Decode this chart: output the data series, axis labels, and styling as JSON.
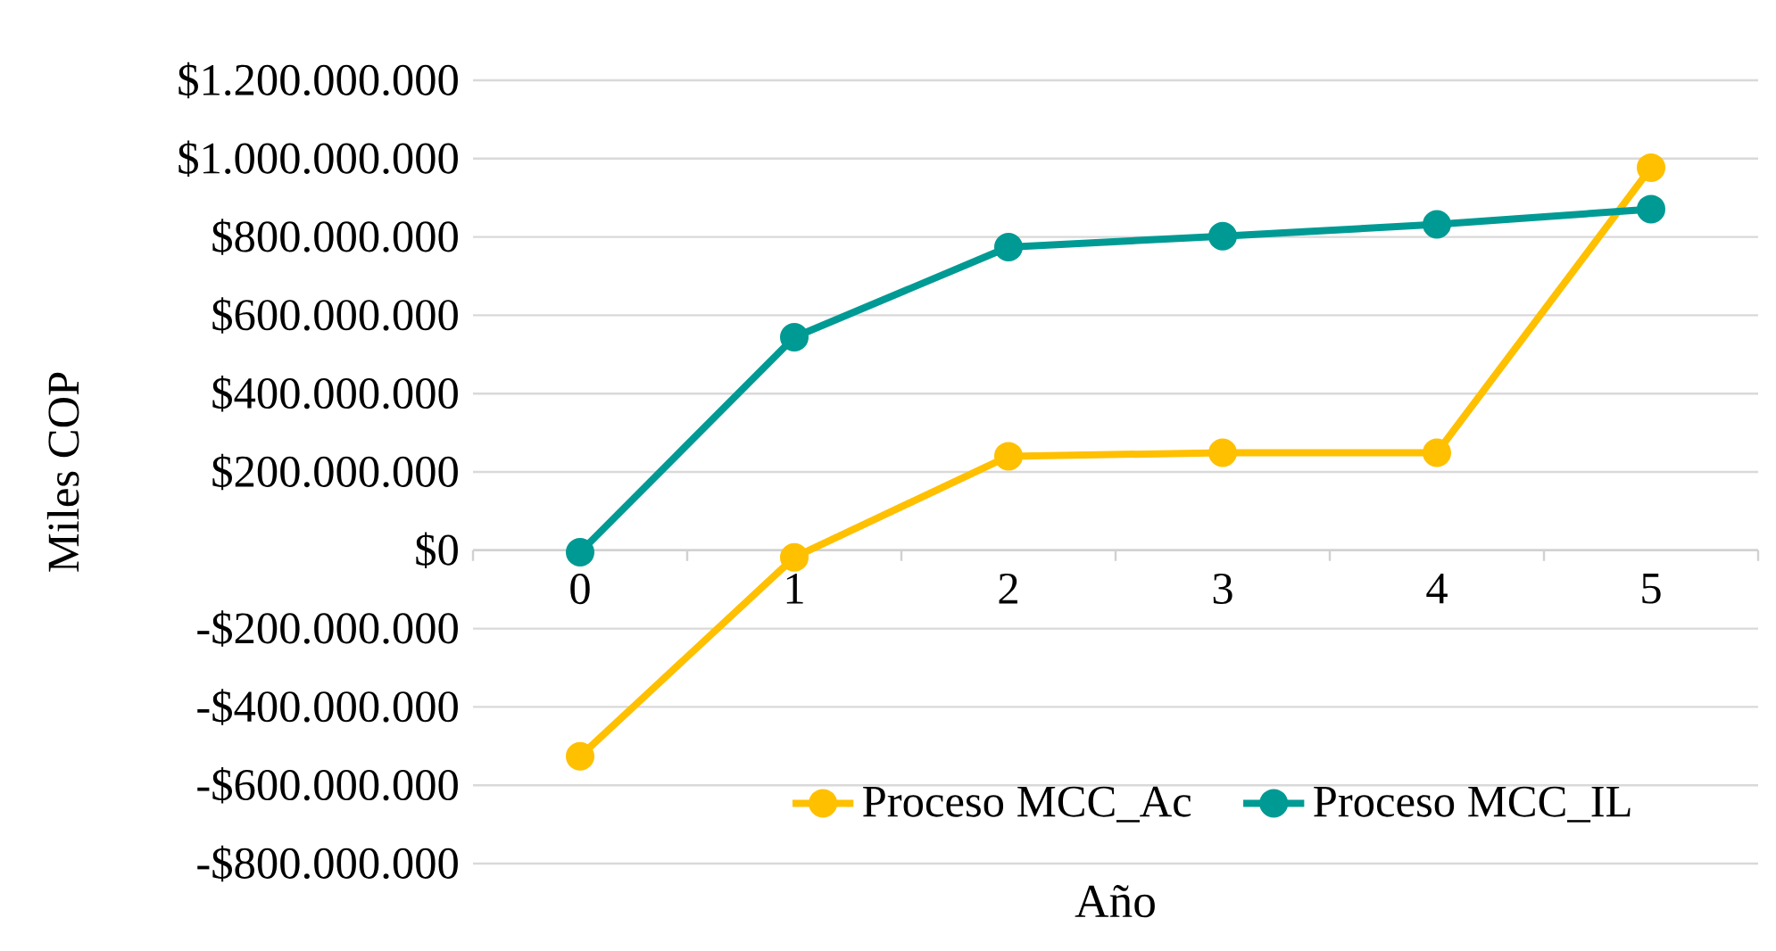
{
  "chart_data": {
    "type": "line",
    "xlabel": "Año",
    "ylabel": "Miles COP",
    "categories": [
      "0",
      "1",
      "2",
      "3",
      "4",
      "5"
    ],
    "series": [
      {
        "name": "Proceso MCC_Ac",
        "color": "#ffc000",
        "values": [
          -526000000,
          -18000000,
          240000000,
          249000000,
          249000000,
          977000000
        ]
      },
      {
        "name": "Proceso MCC_IL",
        "color": "#009a94",
        "values": [
          -5000000,
          544000000,
          774000000,
          802000000,
          832000000,
          871000000
        ]
      }
    ],
    "ylim": [
      -800000000,
      1200000000
    ],
    "yticks": [
      {
        "value": -800000000,
        "label": "-$800.000.000"
      },
      {
        "value": -600000000,
        "label": "-$600.000.000"
      },
      {
        "value": -400000000,
        "label": "-$400.000.000"
      },
      {
        "value": -200000000,
        "label": "-$200.000.000"
      },
      {
        "value": 0,
        "label": "$0"
      },
      {
        "value": 200000000,
        "label": "$200.000.000"
      },
      {
        "value": 400000000,
        "label": "$400.000.000"
      },
      {
        "value": 600000000,
        "label": "$600.000.000"
      },
      {
        "value": 800000000,
        "label": "$800.000.000"
      },
      {
        "value": 1000000000,
        "label": "$1.000.000.000"
      },
      {
        "value": 1200000000,
        "label": "$1.200.000.000"
      }
    ],
    "grid": "y",
    "legend": "bottom",
    "marker": "circle",
    "line_style": "solid"
  }
}
